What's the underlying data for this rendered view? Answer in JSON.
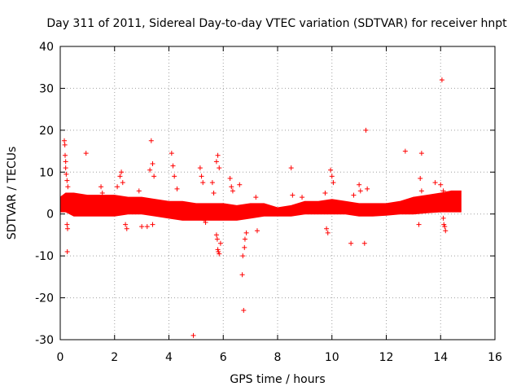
{
  "colors": {
    "series": "#ff0000",
    "axis": "#000000",
    "grid": "#a0a0a0",
    "background": "#ffffff"
  },
  "chart_data": {
    "type": "scatter",
    "title": "Day 311 of 2011, Sidereal Day-to-day VTEC variation (SDTVAR) for receiver hnpt",
    "xlabel": "GPS time / hours",
    "ylabel": "SDTVAR / TECUs",
    "xlim": [
      0,
      16
    ],
    "ylim": [
      -30,
      40
    ],
    "xticks": [
      0,
      2,
      4,
      6,
      8,
      10,
      12,
      14,
      16
    ],
    "yticks": [
      -30,
      -20,
      -10,
      0,
      10,
      20,
      30,
      40
    ],
    "grid": true,
    "marker": "+",
    "series": [
      {
        "name": "SDTVAR",
        "band": {
          "x": [
            0,
            0.2,
            0.5,
            1.0,
            1.5,
            2.0,
            2.5,
            3.0,
            3.5,
            4.0,
            4.5,
            5.0,
            5.5,
            6.0,
            6.5,
            7.0,
            7.5,
            8.0,
            8.5,
            9.0,
            9.5,
            10.0,
            10.5,
            11.0,
            11.5,
            12.0,
            12.5,
            13.0,
            13.5,
            14.0,
            14.4,
            14.75
          ],
          "low": [
            0.5,
            0.5,
            -0.5,
            -0.5,
            -0.5,
            -0.5,
            0.0,
            0.0,
            -0.5,
            -1.0,
            -1.5,
            -1.5,
            -1.5,
            -1.5,
            -1.5,
            -1.0,
            -0.5,
            -0.5,
            -0.5,
            0.0,
            0.0,
            0.0,
            0.0,
            -0.5,
            -0.5,
            -0.3,
            0.0,
            0.0,
            0.3,
            0.5,
            0.5,
            0.5
          ],
          "high": [
            4.0,
            5.0,
            5.0,
            4.5,
            4.5,
            4.5,
            4.0,
            4.0,
            3.5,
            3.0,
            3.0,
            2.5,
            2.5,
            2.5,
            2.0,
            2.5,
            2.5,
            1.5,
            2.0,
            3.0,
            3.0,
            3.5,
            3.0,
            2.5,
            2.5,
            2.5,
            3.0,
            4.0,
            4.5,
            5.0,
            5.5,
            5.5
          ]
        },
        "points": [
          [
            0.15,
            17.5
          ],
          [
            0.17,
            16.5
          ],
          [
            0.18,
            14.0
          ],
          [
            0.2,
            12.5
          ],
          [
            0.2,
            11.0
          ],
          [
            0.22,
            9.5
          ],
          [
            0.25,
            8.0
          ],
          [
            0.28,
            6.5
          ],
          [
            0.25,
            -2.5
          ],
          [
            0.27,
            -3.5
          ],
          [
            0.26,
            -9.0
          ],
          [
            0.95,
            14.5
          ],
          [
            1.5,
            6.5
          ],
          [
            1.55,
            5.0
          ],
          [
            2.1,
            6.5
          ],
          [
            2.2,
            9.0
          ],
          [
            2.25,
            10.0
          ],
          [
            2.3,
            7.5
          ],
          [
            2.4,
            -2.5
          ],
          [
            2.45,
            -3.5
          ],
          [
            2.9,
            5.5
          ],
          [
            3.0,
            -3.0
          ],
          [
            3.2,
            -3.0
          ],
          [
            3.3,
            10.5
          ],
          [
            3.35,
            17.5
          ],
          [
            3.4,
            12.0
          ],
          [
            3.45,
            9.0
          ],
          [
            3.4,
            -2.5
          ],
          [
            4.1,
            14.5
          ],
          [
            4.15,
            11.5
          ],
          [
            4.2,
            9.0
          ],
          [
            4.3,
            6.0
          ],
          [
            4.9,
            -29.0
          ],
          [
            5.15,
            11.0
          ],
          [
            5.2,
            9.0
          ],
          [
            5.25,
            7.5
          ],
          [
            5.3,
            -1.5
          ],
          [
            5.35,
            -2.0
          ],
          [
            5.6,
            7.5
          ],
          [
            5.65,
            5.0
          ],
          [
            5.75,
            12.5
          ],
          [
            5.8,
            14.0
          ],
          [
            5.85,
            11.0
          ],
          [
            5.75,
            -5.0
          ],
          [
            5.78,
            -6.0
          ],
          [
            5.8,
            -8.5
          ],
          [
            5.82,
            -9.0
          ],
          [
            5.85,
            -9.5
          ],
          [
            5.9,
            -7.0
          ],
          [
            6.25,
            8.5
          ],
          [
            6.3,
            6.5
          ],
          [
            6.35,
            5.5
          ],
          [
            6.6,
            7.0
          ],
          [
            6.7,
            -14.5
          ],
          [
            6.72,
            -10.0
          ],
          [
            6.75,
            -23.0
          ],
          [
            6.78,
            -8.0
          ],
          [
            6.8,
            -6.0
          ],
          [
            6.85,
            -4.5
          ],
          [
            7.2,
            4.0
          ],
          [
            7.25,
            -4.0
          ],
          [
            8.5,
            11.0
          ],
          [
            8.55,
            4.5
          ],
          [
            8.9,
            4.0
          ],
          [
            9.75,
            5.0
          ],
          [
            9.8,
            -3.5
          ],
          [
            9.85,
            -4.5
          ],
          [
            9.95,
            10.5
          ],
          [
            10.0,
            9.0
          ],
          [
            10.05,
            7.5
          ],
          [
            10.7,
            -7.0
          ],
          [
            10.8,
            4.5
          ],
          [
            11.0,
            7.0
          ],
          [
            11.05,
            5.5
          ],
          [
            11.2,
            -7.0
          ],
          [
            11.25,
            20.0
          ],
          [
            11.3,
            6.0
          ],
          [
            12.7,
            15.0
          ],
          [
            13.2,
            -2.5
          ],
          [
            13.25,
            8.5
          ],
          [
            13.3,
            14.5
          ],
          [
            13.3,
            5.5
          ],
          [
            13.8,
            7.5
          ],
          [
            14.0,
            7.0
          ],
          [
            14.05,
            32.0
          ],
          [
            14.1,
            5.5
          ],
          [
            14.1,
            -1.0
          ],
          [
            14.12,
            -2.5
          ],
          [
            14.15,
            -3.0
          ],
          [
            14.18,
            -4.0
          ]
        ]
      }
    ]
  }
}
